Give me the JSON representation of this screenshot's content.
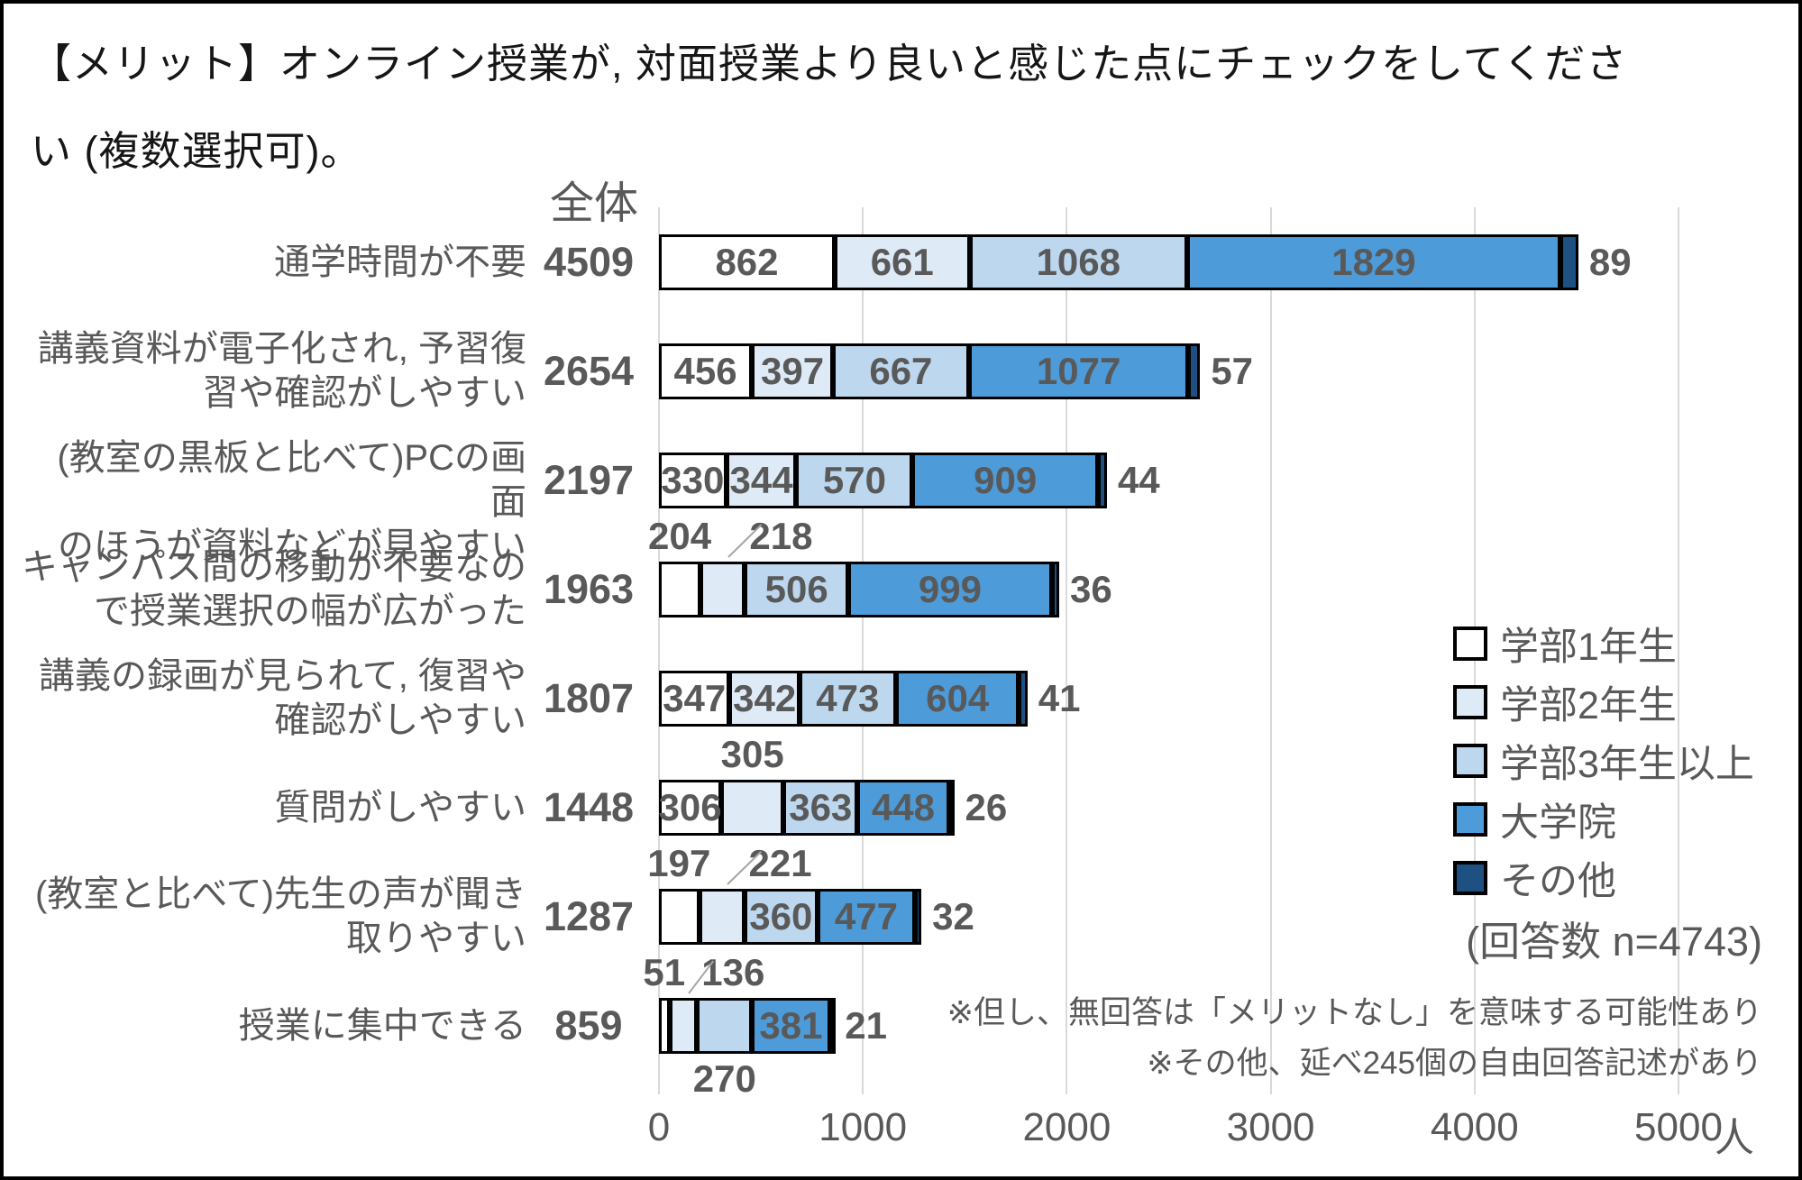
{
  "title": {
    "line1": "【メリット】オンライン授業が, 対面授業より良いと感じた点にチェックをしてくださ",
    "line2": "い (複数選択可)。"
  },
  "chart_data": {
    "type": "bar",
    "stacked": true,
    "orientation": "horizontal",
    "total_header": "全体",
    "unit": "人",
    "x_ticks": [
      0,
      1000,
      2000,
      3000,
      4000,
      5000
    ],
    "xlim": [
      0,
      5000
    ],
    "grid": true,
    "legend_position": "right",
    "categories": [
      {
        "lines": [
          "通学時間が不要"
        ],
        "total": 4509
      },
      {
        "lines": [
          "講義資料が電子化され, 予習復",
          "習や確認がしやすい"
        ],
        "total": 2654
      },
      {
        "lines": [
          "(教室の黒板と比べて)PCの画面",
          "のほうが資料などが見やすい"
        ],
        "total": 2197
      },
      {
        "lines": [
          "キャンパス間の移動が不要なの",
          "で授業選択の幅が広がった"
        ],
        "total": 1963
      },
      {
        "lines": [
          "講義の録画が見られて, 復習や",
          "確認がしやすい"
        ],
        "total": 1807
      },
      {
        "lines": [
          "質問がしやすい"
        ],
        "total": 1448
      },
      {
        "lines": [
          "(教室と比べて)先生の声が聞き",
          "取りやすい"
        ],
        "total": 1287
      },
      {
        "lines": [
          "授業に集中できる"
        ],
        "total": 859
      }
    ],
    "series": [
      {
        "name": "学部1年生",
        "color": "#FFFFFF",
        "values": [
          862,
          456,
          330,
          204,
          347,
          306,
          197,
          51
        ]
      },
      {
        "name": "学部2年生",
        "color": "#DEEBF7",
        "values": [
          661,
          397,
          344,
          218,
          342,
          305,
          221,
          136
        ]
      },
      {
        "name": "学部3年生以上",
        "color": "#BDD7EE",
        "values": [
          1068,
          667,
          570,
          506,
          473,
          363,
          360,
          270
        ]
      },
      {
        "name": "大学院",
        "color": "#4D9BD8",
        "values": [
          1829,
          1077,
          909,
          999,
          604,
          448,
          477,
          381
        ]
      },
      {
        "name": "その他",
        "color": "#1E5081",
        "values": [
          89,
          57,
          44,
          36,
          41,
          26,
          32,
          21
        ]
      }
    ],
    "label_layout": [
      [
        "in",
        "in",
        "in",
        "in",
        "right"
      ],
      [
        "in",
        "in",
        "in",
        "in",
        "right"
      ],
      [
        "in",
        "in",
        "in",
        "in",
        "right"
      ],
      [
        "above",
        "above-shift",
        "in",
        "in",
        "right"
      ],
      [
        "in",
        "in",
        "in",
        "in",
        "right"
      ],
      [
        "in",
        "above",
        "in",
        "in",
        "right"
      ],
      [
        "above",
        "above-shift",
        "in",
        "in",
        "right"
      ],
      [
        "above",
        "above-shift",
        "below",
        "in",
        "right"
      ]
    ]
  },
  "legend": {
    "items": [
      {
        "label": "学部1年生",
        "color": "#FFFFFF"
      },
      {
        "label": "学部2年生",
        "color": "#DEEBF7"
      },
      {
        "label": "学部3年生以上",
        "color": "#BDD7EE"
      },
      {
        "label": "大学院",
        "color": "#4D9BD8"
      },
      {
        "label": "その他",
        "color": "#1E5081"
      }
    ]
  },
  "notes": {
    "response_count": "(回答数 n=4743)",
    "footnote1": "※但し、無回答は「メリットなし」を意味する可能性あり",
    "footnote2": "※その他、延べ245個の自由回答記述があり"
  }
}
